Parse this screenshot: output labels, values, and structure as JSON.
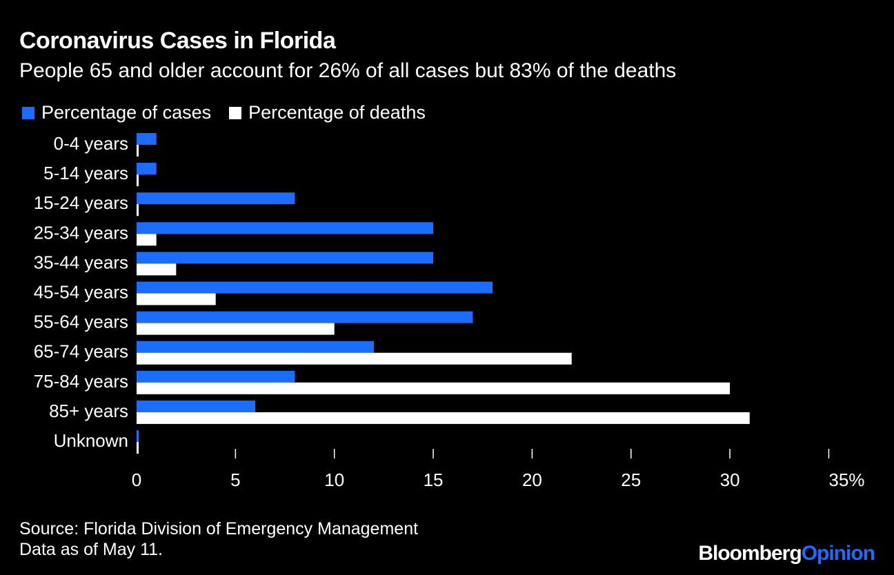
{
  "title": "Coronavirus Cases in Florida",
  "subtitle": "People 65 and older account for 26% of all cases but 83% of the deaths",
  "source_line1": "Source: Florida Division of Emergency Management",
  "source_line2": "Data as of May 11.",
  "brand": {
    "part1": "Bloomberg",
    "part2": "Opinion"
  },
  "colors": {
    "cases": "#1a6dff",
    "deaths": "#ffffff",
    "background": "#000000"
  },
  "chart_data": {
    "type": "bar",
    "orientation": "horizontal",
    "title": "Coronavirus Cases in Florida",
    "subtitle": "People 65 and older account for 26% of all cases but 83% of the deaths",
    "categories": [
      "0-4 years",
      "5-14 years",
      "15-24 years",
      "25-34 years",
      "35-44 years",
      "45-54 years",
      "55-64 years",
      "65-74 years",
      "75-84 years",
      "85+ years",
      "Unknown"
    ],
    "series": [
      {
        "name": "Percentage of cases",
        "color": "#1a6dff",
        "values": [
          1,
          1,
          8,
          15,
          15,
          18,
          17,
          12,
          8,
          6,
          0.1
        ]
      },
      {
        "name": "Percentage of deaths",
        "color": "#ffffff",
        "values": [
          0.1,
          0.1,
          0.1,
          1,
          2,
          4,
          10,
          22,
          30,
          31,
          0.1
        ]
      }
    ],
    "xlim": [
      0,
      35
    ],
    "xticks": [
      {
        "value": 0,
        "label": "0"
      },
      {
        "value": 5,
        "label": "5"
      },
      {
        "value": 10,
        "label": "10"
      },
      {
        "value": 15,
        "label": "15"
      },
      {
        "value": 20,
        "label": "20"
      },
      {
        "value": 25,
        "label": "25"
      },
      {
        "value": 30,
        "label": "30"
      },
      {
        "value": 35,
        "label": "35%"
      }
    ],
    "xlabel": "",
    "ylabel": "",
    "legend_position": "top-left",
    "grid": false
  }
}
